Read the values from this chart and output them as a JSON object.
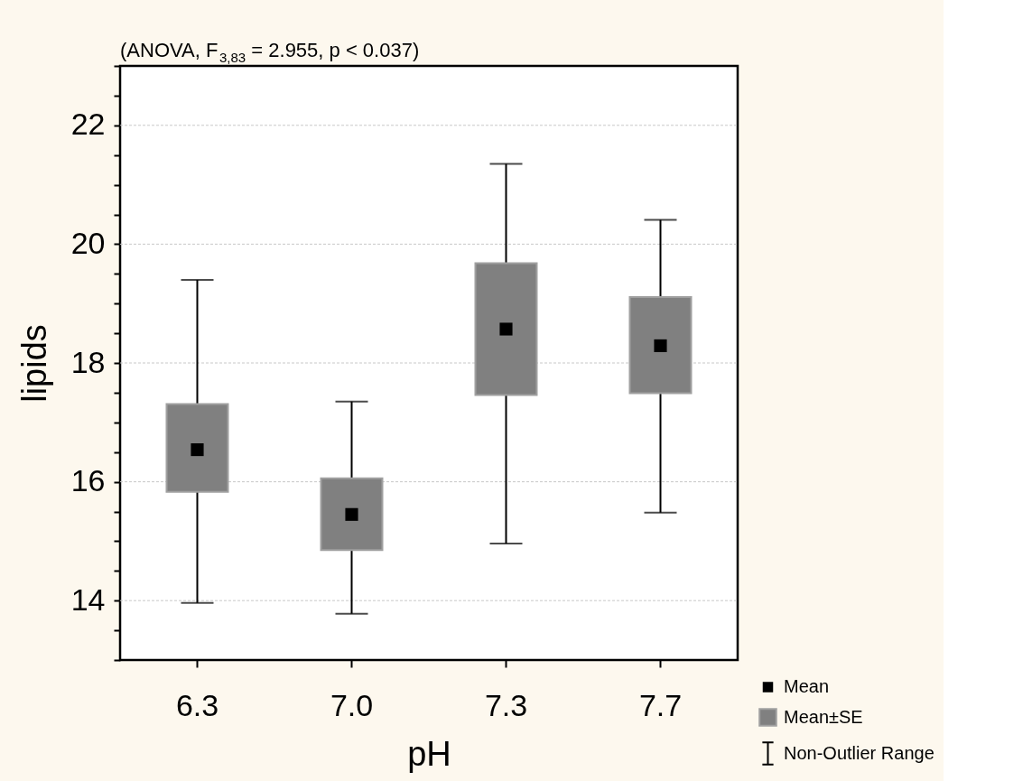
{
  "chart_data": {
    "type": "box",
    "title": "(ANOVA, F$_{3,83}$ = 2.955, p < 0.037)",
    "xlabel": "pH",
    "ylabel": "lipids",
    "categories": [
      "6.3",
      "7.0",
      "7.3",
      "7.7"
    ],
    "series": [
      {
        "name": "Mean",
        "type": "scatter",
        "marker": "square",
        "color": "#000000",
        "values": [
          16.54,
          15.45,
          18.57,
          18.29
        ]
      },
      {
        "name": "Mean±SE",
        "color": "#808080",
        "boxes": [
          {
            "low": 13.96,
            "q1": 15.83,
            "q3": 17.31,
            "high": 19.4
          },
          {
            "low": 13.78,
            "q1": 14.85,
            "q3": 16.06,
            "high": 17.35
          },
          {
            "low": 14.96,
            "q1": 17.46,
            "q3": 19.68,
            "high": 21.35
          },
          {
            "low": 15.48,
            "q1": 17.49,
            "q3": 19.11,
            "high": 20.41
          }
        ]
      }
    ],
    "annotations": [
      "Non-Outlier Range"
    ],
    "ylim": [
      13,
      23
    ],
    "yticks": [
      {
        "value": 13,
        "label": null
      },
      {
        "value": 13.5,
        "label": null
      },
      14,
      {
        "value": 14.5,
        "label": null
      },
      {
        "value": 15,
        "label": null
      },
      {
        "value": 15.5,
        "label": null
      },
      16,
      {
        "value": 16.5,
        "label": null
      },
      {
        "value": 17,
        "label": null
      },
      {
        "value": 17.5,
        "label": null
      },
      18,
      {
        "value": 18.5,
        "label": null
      },
      {
        "value": 19,
        "label": null
      },
      {
        "value": 19.5,
        "label": null
      },
      20,
      {
        "value": 20.5,
        "label": null
      },
      {
        "value": 21,
        "label": null
      },
      {
        "value": 21.5,
        "label": null
      },
      22,
      {
        "value": 22.5,
        "label": null
      },
      {
        "value": 23,
        "label": null
      }
    ],
    "grid": "y",
    "legend": "bottom right"
  }
}
